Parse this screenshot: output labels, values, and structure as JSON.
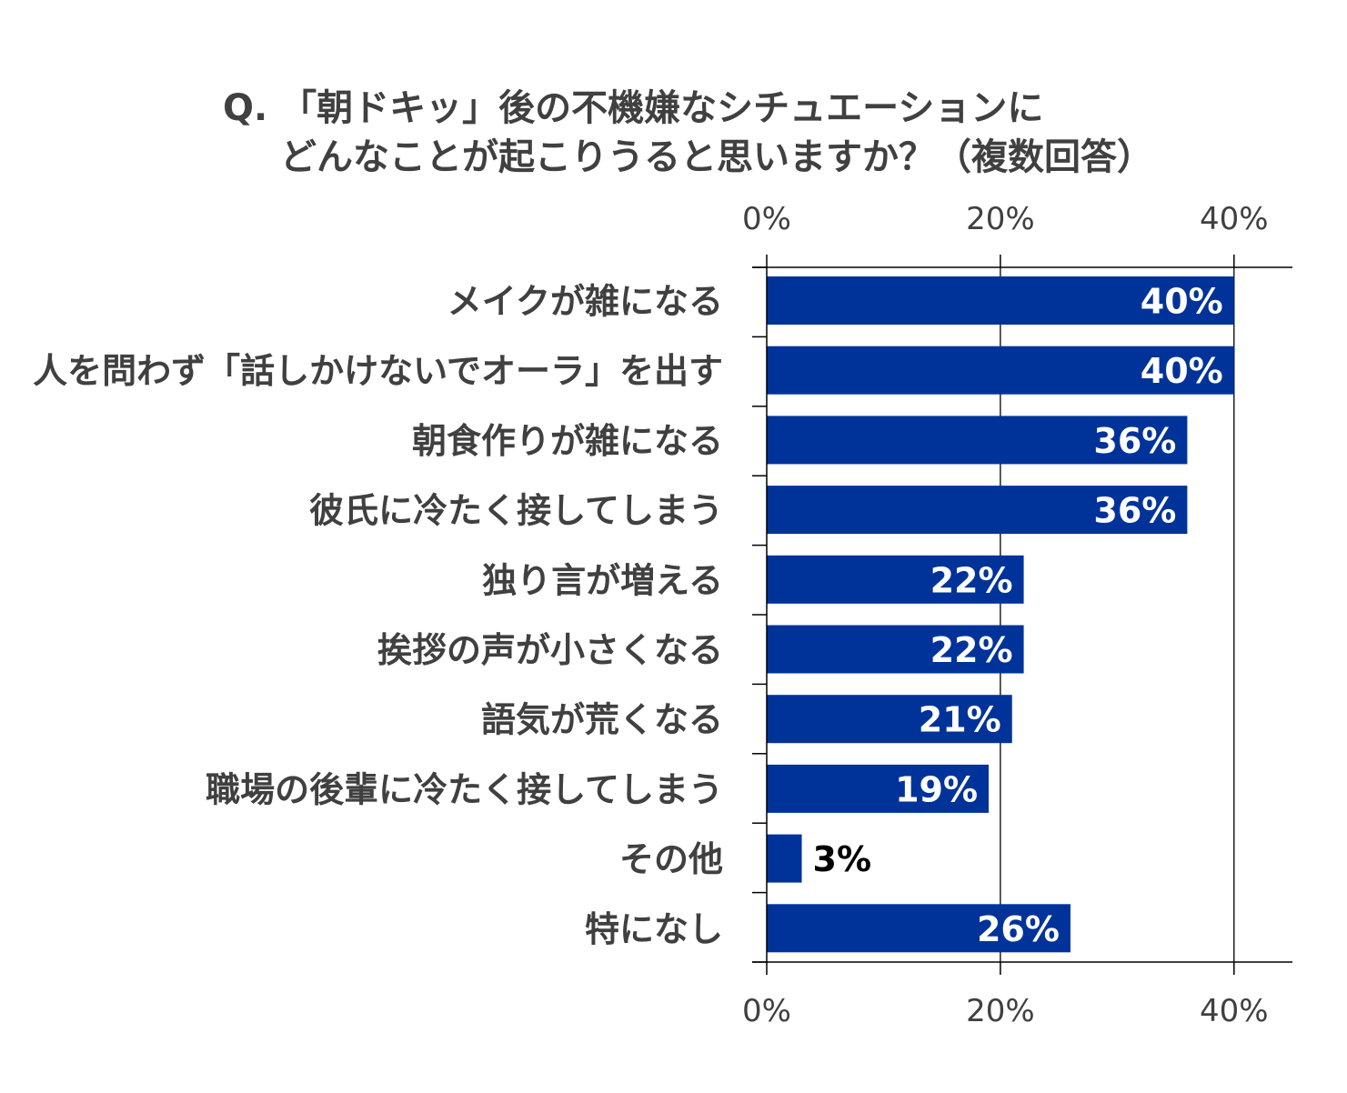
{
  "title": {
    "line1": "Q. 「朝ドキッ」後の不機嫌なシチュエーションに",
    "line2": "どんなことが起こりうると思いますか？（複数回答）"
  },
  "chart_data": {
    "type": "bar",
    "orientation": "horizontal",
    "categories": [
      "メイクが雑になる",
      "人を問わず「話しかけないでオーラ」を出す",
      "朝食作りが雑になる",
      "彼氏に冷たく接してしまう",
      "独り言が増える",
      "挨拶の声が小さくなる",
      "語気が荒くなる",
      "職場の後輩に冷たく接してしまう",
      "その他",
      "特になし"
    ],
    "values": [
      40,
      40,
      36,
      36,
      22,
      22,
      21,
      19,
      3,
      26
    ],
    "value_labels": [
      "40%",
      "40%",
      "36%",
      "36%",
      "22%",
      "22%",
      "21%",
      "19%",
      "3%",
      "26%"
    ],
    "xlim": [
      0,
      45
    ],
    "ticks": [
      0,
      20,
      40
    ],
    "tick_labels": [
      "0%",
      "20%",
      "40%"
    ],
    "axis_labels_top_and_bottom": true,
    "grid": true,
    "colors": {
      "bar": "#003399",
      "label_inside": "#ffffff",
      "label_outside": "#000000",
      "axis": "#000000",
      "title": "#404040",
      "category": "#404040"
    }
  }
}
